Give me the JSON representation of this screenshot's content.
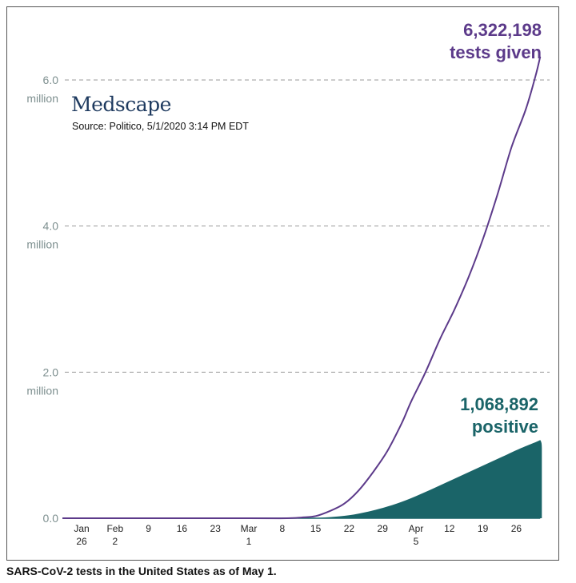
{
  "brand": "Medscape",
  "source": "Source: Politico, 5/1/2020 3:14 PM EDT",
  "caption": "SARS-CoV-2 tests in the United States as of May 1.",
  "colors": {
    "tests": "#5c3a8a",
    "positive": "#1a6468",
    "grid": "#999999",
    "ylabel": "#7d8f8f"
  },
  "annotations": {
    "tests_value": "6,322,198",
    "tests_label": "tests given",
    "positive_value": "1,068,892",
    "positive_label": "positive"
  },
  "chart_data": {
    "type": "area",
    "title": "",
    "xlabel": "",
    "ylabel": "",
    "ylim": [
      0,
      6.3
    ],
    "y_ticks": [
      {
        "value": 0,
        "label": "0.0",
        "sub": ""
      },
      {
        "value": 2,
        "label": "2.0",
        "sub": "million"
      },
      {
        "value": 4,
        "label": "4.0",
        "sub": "million"
      },
      {
        "value": 6,
        "label": "6.0",
        "sub": "million"
      }
    ],
    "x_ticks": [
      {
        "date": "2020-01-26",
        "l1": "Jan",
        "l2": "26"
      },
      {
        "date": "2020-02-02",
        "l1": "Feb",
        "l2": "2"
      },
      {
        "date": "2020-02-09",
        "l1": "9",
        "l2": ""
      },
      {
        "date": "2020-02-16",
        "l1": "16",
        "l2": ""
      },
      {
        "date": "2020-02-23",
        "l1": "23",
        "l2": ""
      },
      {
        "date": "2020-03-01",
        "l1": "Mar",
        "l2": "1"
      },
      {
        "date": "2020-03-08",
        "l1": "8",
        "l2": ""
      },
      {
        "date": "2020-03-15",
        "l1": "15",
        "l2": ""
      },
      {
        "date": "2020-03-22",
        "l1": "22",
        "l2": ""
      },
      {
        "date": "2020-03-29",
        "l1": "29",
        "l2": ""
      },
      {
        "date": "2020-04-05",
        "l1": "Apr",
        "l2": "5"
      },
      {
        "date": "2020-04-12",
        "l1": "12",
        "l2": ""
      },
      {
        "date": "2020-04-19",
        "l1": "19",
        "l2": ""
      },
      {
        "date": "2020-04-26",
        "l1": "26",
        "l2": ""
      }
    ],
    "series": [
      {
        "name": "tests given",
        "type": "line",
        "points": [
          [
            "2020-01-22",
            0
          ],
          [
            "2020-03-01",
            0
          ],
          [
            "2020-03-09",
            0.0
          ],
          [
            "2020-03-12",
            0.01
          ],
          [
            "2020-03-15",
            0.03
          ],
          [
            "2020-03-18",
            0.1
          ],
          [
            "2020-03-21",
            0.2
          ],
          [
            "2020-03-24",
            0.38
          ],
          [
            "2020-03-27",
            0.63
          ],
          [
            "2020-03-30",
            0.92
          ],
          [
            "2020-04-02",
            1.3
          ],
          [
            "2020-04-04",
            1.6
          ],
          [
            "2020-04-07",
            2.0
          ],
          [
            "2020-04-10",
            2.45
          ],
          [
            "2020-04-13",
            2.85
          ],
          [
            "2020-04-16",
            3.3
          ],
          [
            "2020-04-19",
            3.82
          ],
          [
            "2020-04-22",
            4.42
          ],
          [
            "2020-04-25",
            5.08
          ],
          [
            "2020-04-28",
            5.6
          ],
          [
            "2020-04-30",
            6.05
          ],
          [
            "2020-05-01",
            6.32
          ]
        ]
      },
      {
        "name": "positive",
        "type": "area",
        "points": [
          [
            "2020-01-22",
            0
          ],
          [
            "2020-03-10",
            0
          ],
          [
            "2020-03-14",
            0.003
          ],
          [
            "2020-03-18",
            0.015
          ],
          [
            "2020-03-22",
            0.04
          ],
          [
            "2020-03-26",
            0.09
          ],
          [
            "2020-03-30",
            0.16
          ],
          [
            "2020-04-03",
            0.25
          ],
          [
            "2020-04-07",
            0.36
          ],
          [
            "2020-04-11",
            0.48
          ],
          [
            "2020-04-15",
            0.6
          ],
          [
            "2020-04-19",
            0.72
          ],
          [
            "2020-04-23",
            0.84
          ],
          [
            "2020-04-27",
            0.96
          ],
          [
            "2020-04-30",
            1.04
          ],
          [
            "2020-05-01",
            1.07
          ]
        ]
      }
    ]
  }
}
